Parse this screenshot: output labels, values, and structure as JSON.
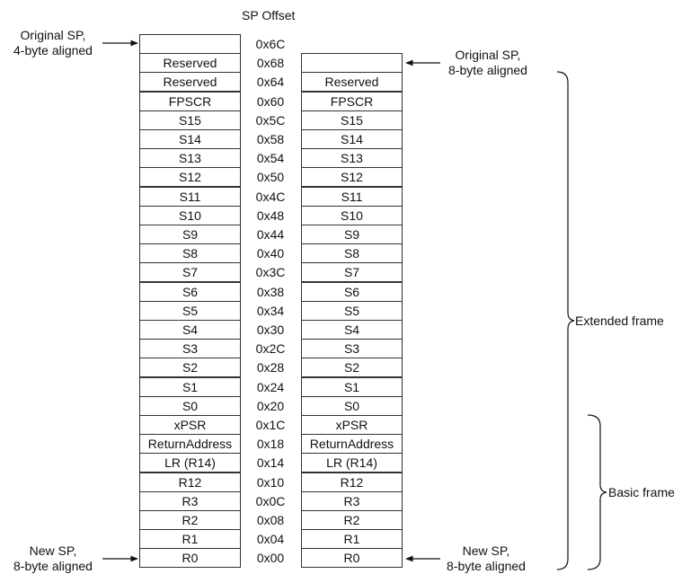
{
  "header": {
    "sp_offset": "SP Offset"
  },
  "offsets": [
    "0x6C",
    "0x68",
    "0x64",
    "0x60",
    "0x5C",
    "0x58",
    "0x54",
    "0x50",
    "0x4C",
    "0x48",
    "0x44",
    "0x40",
    "0x3C",
    "0x38",
    "0x34",
    "0x30",
    "0x2C",
    "0x28",
    "0x24",
    "0x20",
    "0x1C",
    "0x18",
    "0x14",
    "0x10",
    "0x0C",
    "0x08",
    "0x04",
    "0x00"
  ],
  "left_stack": [
    "",
    "Reserved",
    "Reserved",
    "FPSCR",
    "S15",
    "S14",
    "S13",
    "S12",
    "S11",
    "S10",
    "S9",
    "S8",
    "S7",
    "S6",
    "S5",
    "S4",
    "S3",
    "S2",
    "S1",
    "S0",
    "xPSR",
    "ReturnAddress",
    "LR (R14)",
    "R12",
    "R3",
    "R2",
    "R1",
    "R0"
  ],
  "right_stack": [
    "",
    "Reserved",
    "FPSCR",
    "S15",
    "S14",
    "S13",
    "S12",
    "S11",
    "S10",
    "S9",
    "S8",
    "S7",
    "S6",
    "S5",
    "S4",
    "S3",
    "S2",
    "S1",
    "S0",
    "xPSR",
    "ReturnAddress",
    "LR (R14)",
    "R12",
    "R3",
    "R2",
    "R1",
    "R0"
  ],
  "annotations": {
    "orig_sp_4_line1": "Original SP,",
    "orig_sp_4_line2": "4-byte aligned",
    "orig_sp_8_line1": "Original SP,",
    "orig_sp_8_line2": "8-byte aligned",
    "new_sp_left_line1": "New SP,",
    "new_sp_left_line2": "8-byte aligned",
    "new_sp_right_line1": "New SP,",
    "new_sp_right_line2": "8-byte aligned"
  },
  "brackets": {
    "extended": "Extended frame",
    "basic": "Basic frame"
  }
}
